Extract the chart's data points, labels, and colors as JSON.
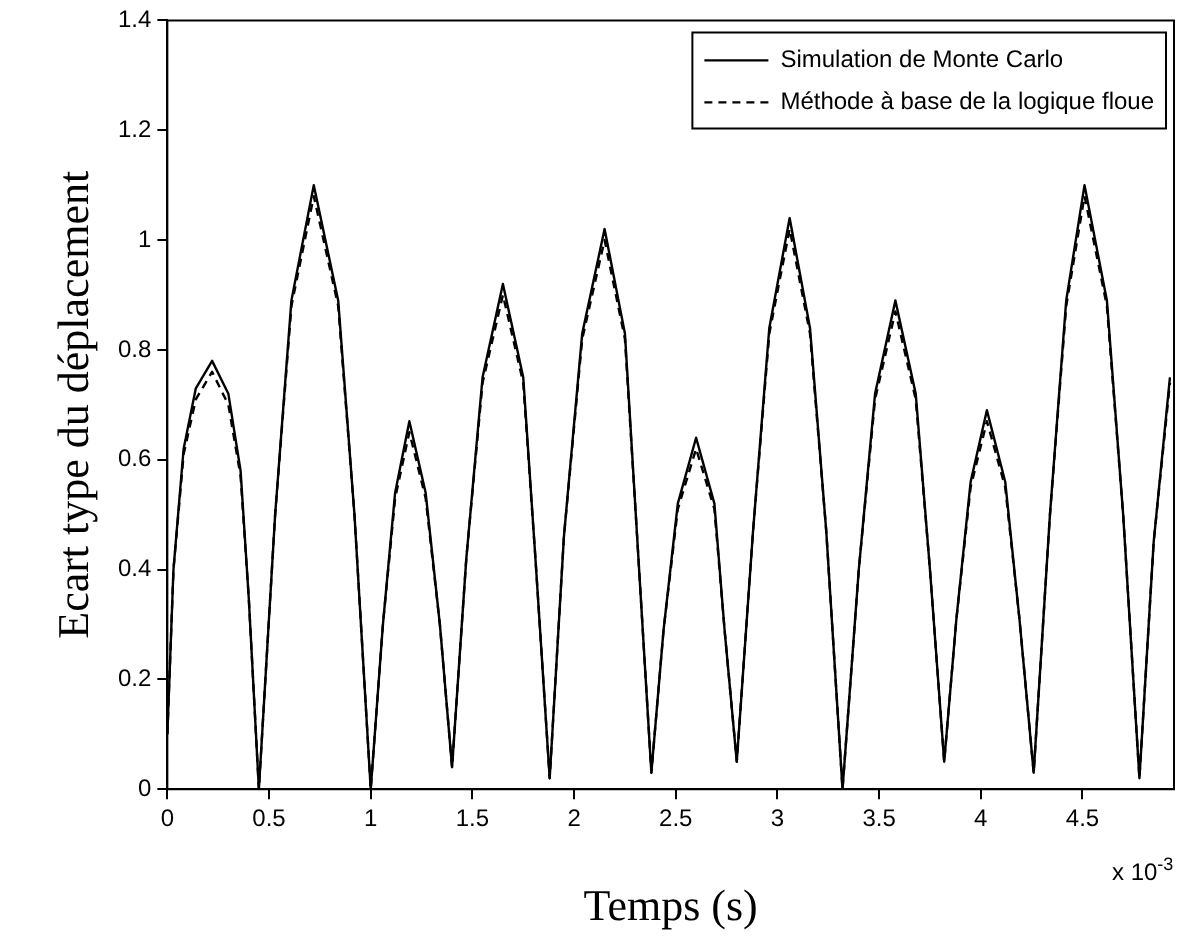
{
  "chart_data": {
    "type": "line",
    "xlabel": "Temps (s)",
    "ylabel": "Ecart type du déplacement",
    "annotations": [
      "x 10$^{-3}$"
    ],
    "x": [
      0,
      0.03,
      0.08,
      0.14,
      0.22,
      0.3,
      0.36,
      0.4,
      0.45,
      0.53,
      0.61,
      0.72,
      0.84,
      0.92,
      1.0,
      1.06,
      1.12,
      1.19,
      1.27,
      1.34,
      1.4,
      1.47,
      1.55,
      1.65,
      1.75,
      1.81,
      1.88,
      1.95,
      2.04,
      2.15,
      2.25,
      2.31,
      2.38,
      2.44,
      2.51,
      2.6,
      2.69,
      2.74,
      2.8,
      2.88,
      2.96,
      3.06,
      3.16,
      3.24,
      3.32,
      3.4,
      3.48,
      3.58,
      3.68,
      3.75,
      3.82,
      3.88,
      3.95,
      4.03,
      4.12,
      4.19,
      4.26,
      4.34,
      4.42,
      4.51,
      4.62,
      4.7,
      4.78,
      4.85,
      4.93
    ],
    "series": [
      {
        "name": "Simulation de Monte Carlo",
        "color": "#000000",
        "line_style": "solid",
        "values": [
          0.1,
          0.4,
          0.62,
          0.73,
          0.78,
          0.72,
          0.58,
          0.35,
          0.0,
          0.5,
          0.89,
          1.1,
          0.89,
          0.5,
          0.0,
          0.3,
          0.54,
          0.67,
          0.54,
          0.3,
          0.04,
          0.42,
          0.75,
          0.92,
          0.75,
          0.42,
          0.02,
          0.46,
          0.83,
          1.02,
          0.83,
          0.46,
          0.03,
          0.29,
          0.52,
          0.64,
          0.52,
          0.29,
          0.05,
          0.47,
          0.84,
          1.04,
          0.84,
          0.47,
          0.0,
          0.4,
          0.72,
          0.89,
          0.72,
          0.4,
          0.05,
          0.31,
          0.56,
          0.69,
          0.56,
          0.31,
          0.03,
          0.5,
          0.89,
          1.1,
          0.89,
          0.5,
          0.02,
          0.45,
          0.75
        ]
      },
      {
        "name": "Méthode à base de la logique floue",
        "color": "#000000",
        "line_style": "dashed",
        "values": [
          0.1,
          0.4,
          0.61,
          0.71,
          0.76,
          0.7,
          0.57,
          0.35,
          0.0,
          0.5,
          0.88,
          1.08,
          0.88,
          0.5,
          0.0,
          0.3,
          0.53,
          0.65,
          0.53,
          0.3,
          0.04,
          0.42,
          0.74,
          0.9,
          0.74,
          0.42,
          0.02,
          0.46,
          0.82,
          1.0,
          0.82,
          0.46,
          0.03,
          0.29,
          0.51,
          0.62,
          0.51,
          0.29,
          0.05,
          0.47,
          0.83,
          1.02,
          0.83,
          0.47,
          0.0,
          0.4,
          0.71,
          0.87,
          0.71,
          0.4,
          0.05,
          0.31,
          0.55,
          0.67,
          0.55,
          0.31,
          0.03,
          0.5,
          0.88,
          1.08,
          0.88,
          0.5,
          0.02,
          0.45,
          0.74
        ]
      }
    ],
    "xlim": [
      0,
      4.95
    ],
    "xticks": [
      0,
      0.5,
      1,
      1.5,
      2,
      2.5,
      3,
      3.5,
      4,
      4.5
    ],
    "ylim": [
      0,
      1.4
    ],
    "yticks": [
      0,
      0.2,
      0.4,
      0.6,
      0.8,
      1,
      1.2,
      1.4
    ],
    "grid": false,
    "legend": "top right",
    "marker": "none"
  }
}
